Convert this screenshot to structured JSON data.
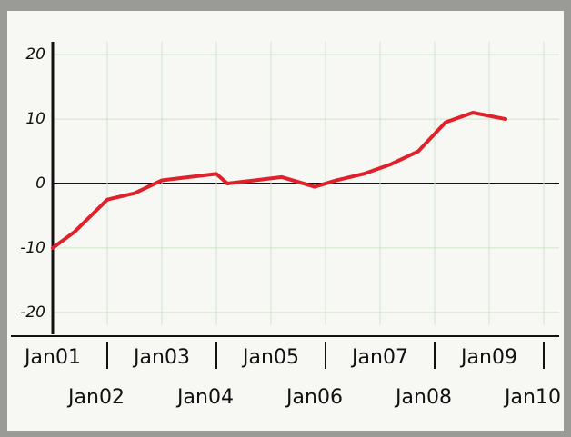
{
  "chart_data": {
    "type": "line",
    "x": [
      2001,
      2001.4,
      2001.7,
      2002,
      2002.5,
      2003,
      2003.5,
      2004,
      2004.2,
      2004.7,
      2005.2,
      2005.8,
      2006.2,
      2006.7,
      2007.2,
      2007.7,
      2008.2,
      2008.7,
      2009.3
    ],
    "series": [
      {
        "color": "#e0202a",
        "values": [
          -10,
          -7.5,
          -5,
          -2.5,
          -1.5,
          0.5,
          1,
          1.5,
          0,
          0.5,
          1,
          -0.5,
          0.5,
          1.5,
          3,
          5,
          9.5,
          11,
          10
        ]
      }
    ],
    "xlim": [
      2001,
      2010
    ],
    "xticks": [
      {
        "value": 2001,
        "label": "Jan01"
      },
      {
        "value": 2002,
        "label": "Jan02"
      },
      {
        "value": 2003,
        "label": "Jan03"
      },
      {
        "value": 2004,
        "label": "Jan04"
      },
      {
        "value": 2005,
        "label": "Jan05"
      },
      {
        "value": 2006,
        "label": "Jan06"
      },
      {
        "value": 2007,
        "label": "Jan07"
      },
      {
        "value": 2008,
        "label": "Jan08"
      },
      {
        "value": 2009,
        "label": "Jan09"
      },
      {
        "value": 2010,
        "label": "Jan10"
      }
    ],
    "ylim": [
      -22,
      22
    ],
    "yticks": [
      -20,
      -10,
      0,
      10,
      20
    ],
    "grid": true
  }
}
